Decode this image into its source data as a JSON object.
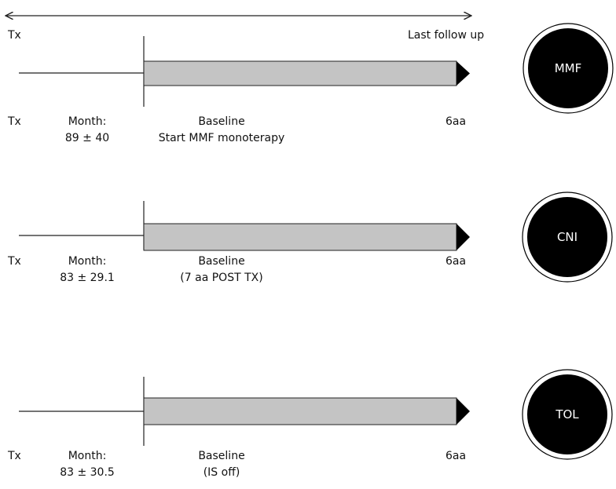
{
  "top": {
    "start_label": "Tx",
    "end_label": "Last follow up"
  },
  "groups": [
    {
      "name": "MMF",
      "start_label": "Tx",
      "month_label": "Month:",
      "month_value": "89 ± 40",
      "baseline_label": "Baseline",
      "baseline_note": "Start MMF monoterapy",
      "end_label": "6aa"
    },
    {
      "name": "CNI",
      "start_label": "Tx",
      "month_label": "Month:",
      "month_value": "83 ± 29.1",
      "baseline_label": "Baseline",
      "baseline_note": "(7 aa POST TX)",
      "end_label": "6aa"
    },
    {
      "name": "TOL",
      "start_label": "Tx",
      "month_label": "Month:",
      "month_value": "83 ± 30.5",
      "baseline_label": "Baseline",
      "baseline_note": "(IS off)",
      "end_label": "6aa"
    }
  ],
  "colors": {
    "bar_fill": "#c4c4c4",
    "line": "#222222",
    "circle": "#000000",
    "circle_ring": "#000000",
    "background": "#ffffff"
  }
}
